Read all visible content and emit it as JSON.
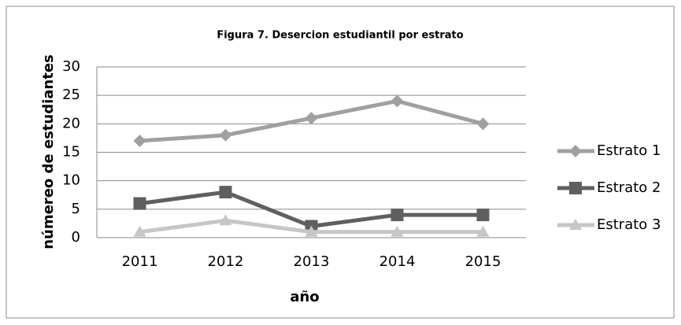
{
  "chart_data": {
    "type": "line",
    "title": "Figura 7. Desercion estudiantil por estrato",
    "x_label": "año",
    "y_label": "númereo de estudiantes",
    "categories": [
      "2011",
      "2012",
      "2013",
      "2014",
      "2015"
    ],
    "series": [
      {
        "name": "Estrato 1",
        "color": "#a0a0a0",
        "marker": "diamond",
        "values": [
          17,
          18,
          21,
          24,
          20
        ]
      },
      {
        "name": "Estrato 2",
        "color": "#5f5f5f",
        "marker": "square",
        "values": [
          6,
          8,
          2,
          4,
          4
        ]
      },
      {
        "name": "Estrato 3",
        "color": "#c6c6c6",
        "marker": "triangle",
        "values": [
          1,
          3,
          1,
          1,
          1
        ]
      }
    ],
    "ylim": [
      0,
      30
    ],
    "yticks": [
      0,
      5,
      10,
      15,
      20,
      25,
      30
    ],
    "grid": true,
    "legend": "right"
  }
}
